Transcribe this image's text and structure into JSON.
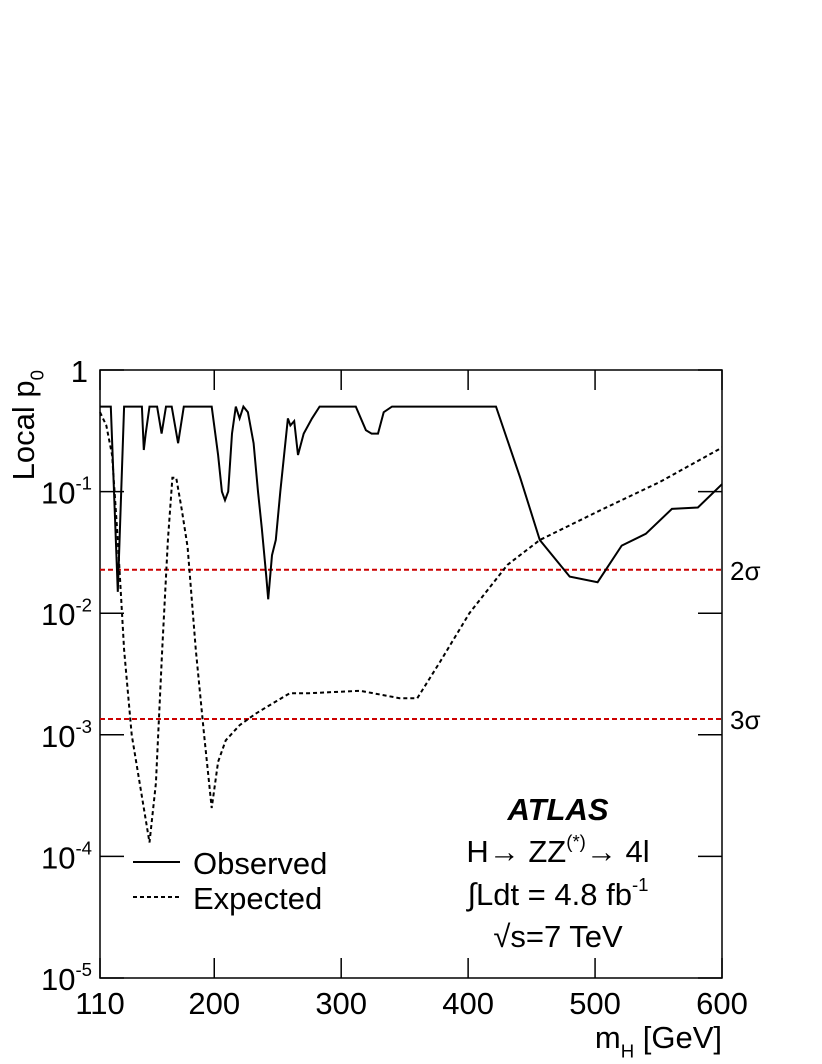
{
  "chart_data": {
    "type": "line",
    "xlabel": [
      "m",
      "H",
      " [GeV]"
    ],
    "ylabel": [
      "Local p",
      "0"
    ],
    "log_y": true,
    "xlim": [
      110,
      600
    ],
    "ylim": [
      1e-05,
      1
    ],
    "xticks": [
      110,
      200,
      300,
      400,
      500,
      600
    ],
    "yticks": [
      1,
      {
        "value": 0.1,
        "label": [
          "10",
          "-1"
        ]
      },
      {
        "value": 0.01,
        "label": [
          "10",
          "-2"
        ]
      },
      {
        "value": 0.001,
        "label": [
          "10",
          "-3"
        ]
      },
      {
        "value": 0.0001,
        "label": [
          "10",
          "-4"
        ]
      },
      {
        "value": 1e-05,
        "label": [
          "10",
          "-5"
        ]
      }
    ],
    "legend": "bottom-left",
    "series": [
      {
        "name": "Observed",
        "color": "#000000",
        "dash": "solid",
        "x": [
          110,
          118.5,
          124,
          129,
          143,
          144.5,
          146,
          149,
          155,
          158.5,
          162,
          166.5,
          171.5,
          176,
          198,
          203,
          206,
          208.5,
          211,
          214,
          217,
          220,
          223,
          226.5,
          231,
          234.5,
          237.5,
          241,
          242.5,
          245.5,
          248.5,
          252,
          255,
          258,
          260,
          263,
          266,
          270.5,
          277,
          283,
          311.5,
          319.5,
          324,
          329,
          333.5,
          340,
          422,
          441,
          456.5,
          480,
          502,
          521,
          540,
          560.5,
          581,
          600
        ],
        "values": [
          0.5,
          0.5,
          0.015,
          0.5,
          0.5,
          0.22,
          0.3,
          0.5,
          0.5,
          0.3,
          0.5,
          0.5,
          0.25,
          0.5,
          0.5,
          0.2,
          0.1,
          0.085,
          0.1,
          0.3,
          0.5,
          0.4,
          0.5,
          0.45,
          0.25,
          0.1,
          0.05,
          0.02,
          0.013,
          0.03,
          0.04,
          0.1,
          0.2,
          0.4,
          0.35,
          0.38,
          0.2,
          0.3,
          0.4,
          0.5,
          0.5,
          0.32,
          0.3,
          0.3,
          0.45,
          0.5,
          0.5,
          0.13,
          0.04,
          0.02,
          0.018,
          0.036,
          0.045,
          0.072,
          0.074,
          0.115
        ]
      },
      {
        "name": "Expected",
        "color": "#000000",
        "dash": "dashed",
        "x": [
          110,
          115,
          119.5,
          124,
          129,
          135,
          149,
          154,
          159,
          163.5,
          167,
          170,
          174.5,
          179,
          185.5,
          192,
          198,
          203,
          209,
          220,
          233,
          245.5,
          259.5,
          275,
          315,
          346,
          360,
          378,
          401,
          431,
          456.5,
          504,
          551,
          600
        ],
        "values": [
          0.45,
          0.35,
          0.2,
          0.04,
          0.005,
          0.001,
          0.00013,
          0.0004,
          0.005,
          0.04,
          0.13,
          0.13,
          0.07,
          0.035,
          0.005,
          0.001,
          0.00025,
          0.0006,
          0.0009,
          0.0012,
          0.0015,
          0.0018,
          0.0022,
          0.0022,
          0.0023,
          0.002,
          0.002,
          0.004,
          0.01,
          0.025,
          0.04,
          0.07,
          0.12,
          0.23
        ]
      }
    ],
    "reference_lines": [
      {
        "value": 0.02275,
        "label": "2σ",
        "color": "#cc0000"
      },
      {
        "value": 0.00135,
        "label": "3σ",
        "color": "#cc0000"
      }
    ],
    "annotations": [
      [
        "ATLAS"
      ],
      [
        "H→ ZZ",
        "(*)",
        "→ 4l"
      ],
      [
        "∫Ldt = 4.8 fb",
        "-1"
      ],
      [
        "√s=7 TeV"
      ]
    ]
  }
}
